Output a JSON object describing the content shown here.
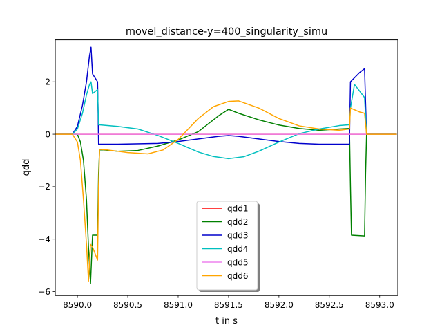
{
  "chart_data": {
    "type": "line",
    "title": "movel_distance-y=400_singularity_simu",
    "xlabel": "t in s",
    "ylabel": "qdd",
    "xlim": [
      8589.78,
      8593.18
    ],
    "ylim": [
      -6.15,
      3.6
    ],
    "xticks": [
      8590.0,
      8590.5,
      8591.0,
      8591.5,
      8592.0,
      8592.5,
      8593.0
    ],
    "xtick_labels": [
      "8590.0",
      "8590.5",
      "8591.0",
      "8591.5",
      "8592.0",
      "8592.5",
      "8593.0"
    ],
    "yticks": [
      -6,
      -4,
      -2,
      0,
      2
    ],
    "ytick_labels": [
      "−6",
      "−4",
      "−2",
      "0",
      "2"
    ],
    "grid": false,
    "legend_position": "lower-center",
    "series": [
      {
        "name": "qdd1",
        "color": "#ff0000",
        "x": [
          8589.78,
          8593.17
        ],
        "y": [
          0,
          0
        ]
      },
      {
        "name": "qdd2",
        "color": "#008000",
        "x": [
          8589.78,
          8590.0,
          8590.03,
          8590.06,
          8590.09,
          8590.11,
          8590.13,
          8590.15,
          8590.2,
          8590.21,
          8590.22,
          8590.26,
          8590.4,
          8590.6,
          8590.8,
          8591.0,
          8591.2,
          8591.4,
          8591.5,
          8591.6,
          8591.8,
          8592.0,
          8592.2,
          8592.4,
          8592.6,
          8592.7,
          8592.71,
          8592.72,
          8592.85,
          8592.86,
          8592.87,
          8593.17
        ],
        "y": [
          0,
          0,
          -0.3,
          -1.0,
          -2.5,
          -4.3,
          -5.7,
          -3.85,
          -3.85,
          -1.5,
          -0.6,
          -0.6,
          -0.65,
          -0.62,
          -0.45,
          -0.22,
          0.1,
          0.7,
          0.95,
          0.8,
          0.55,
          0.35,
          0.22,
          0.15,
          0.2,
          0.22,
          -2.0,
          -3.85,
          -3.88,
          -1.5,
          0,
          0
        ]
      },
      {
        "name": "qdd3",
        "color": "#0000cc",
        "x": [
          8589.78,
          8589.95,
          8590.0,
          8590.05,
          8590.09,
          8590.12,
          8590.135,
          8590.15,
          8590.2,
          8590.205,
          8590.21,
          8590.4,
          8590.8,
          8591.0,
          8591.2,
          8591.4,
          8591.5,
          8591.6,
          8591.8,
          8592.0,
          8592.2,
          8592.4,
          8592.6,
          8592.7,
          8592.705,
          8592.71,
          8592.8,
          8592.85,
          8592.86,
          8592.87,
          8593.17
        ],
        "y": [
          0,
          0,
          0.3,
          1.1,
          2.0,
          3.0,
          3.32,
          2.3,
          2.0,
          0.9,
          -0.38,
          -0.38,
          -0.35,
          -0.28,
          -0.18,
          -0.08,
          -0.05,
          -0.08,
          -0.18,
          -0.28,
          -0.35,
          -0.38,
          -0.38,
          -0.38,
          0.9,
          2.0,
          2.35,
          2.5,
          1.2,
          0,
          0
        ]
      },
      {
        "name": "qdd4",
        "color": "#00bfbf",
        "x": [
          8589.78,
          8589.95,
          8590.0,
          8590.05,
          8590.09,
          8590.12,
          8590.135,
          8590.15,
          8590.2,
          8590.205,
          8590.21,
          8590.4,
          8590.6,
          8590.8,
          8591.0,
          8591.2,
          8591.35,
          8591.5,
          8591.65,
          8591.8,
          8592.0,
          8592.2,
          8592.4,
          8592.6,
          8592.7,
          8592.71,
          8592.75,
          8592.85,
          8592.86,
          8592.87,
          8593.17
        ],
        "y": [
          0,
          0,
          0.2,
          0.8,
          1.5,
          1.9,
          2.0,
          1.55,
          1.7,
          1.0,
          0.36,
          0.3,
          0.2,
          -0.05,
          -0.35,
          -0.68,
          -0.85,
          -0.93,
          -0.86,
          -0.65,
          -0.3,
          0.02,
          0.2,
          0.33,
          0.36,
          1.0,
          1.9,
          1.4,
          0.7,
          0,
          0
        ]
      },
      {
        "name": "qdd5",
        "color": "#ee82ee",
        "x": [
          8589.78,
          8593.17
        ],
        "y": [
          0,
          0
        ]
      },
      {
        "name": "qdd6",
        "color": "#ffa500",
        "x": [
          8589.78,
          8589.95,
          8590.0,
          8590.03,
          8590.06,
          8590.09,
          8590.11,
          8590.13,
          8590.15,
          8590.18,
          8590.2,
          8590.21,
          8590.22,
          8590.3,
          8590.5,
          8590.7,
          8590.85,
          8591.0,
          8591.1,
          8591.2,
          8591.35,
          8591.5,
          8591.6,
          8591.8,
          8592.0,
          8592.2,
          8592.4,
          8592.6,
          8592.7,
          8592.71,
          8592.8,
          8592.85,
          8592.86,
          8592.87,
          8593.17
        ],
        "y": [
          0,
          0,
          -0.3,
          -1.0,
          -2.5,
          -4.2,
          -5.6,
          -4.2,
          -4.3,
          -4.6,
          -4.8,
          -2.0,
          -0.58,
          -0.6,
          -0.7,
          -0.75,
          -0.6,
          -0.2,
          0.2,
          0.6,
          1.05,
          1.25,
          1.27,
          1.0,
          0.6,
          0.32,
          0.2,
          0.15,
          0.2,
          1.0,
          0.85,
          0.8,
          0.4,
          0,
          0
        ]
      }
    ]
  }
}
